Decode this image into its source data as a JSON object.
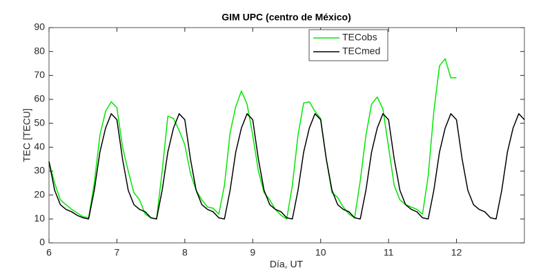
{
  "chart_data": {
    "type": "line",
    "title": "GIM UPC (centro de México)",
    "xlabel": "Día, UT",
    "ylabel": "TEC [TECU]",
    "xlim": [
      6,
      13
    ],
    "xticks": [
      6,
      7,
      8,
      9,
      10,
      11,
      12
    ],
    "ylim": [
      0,
      90
    ],
    "yticks": [
      0,
      10,
      20,
      30,
      40,
      50,
      60,
      70,
      80,
      90
    ],
    "series": [
      {
        "name": "TECobs",
        "color": "#00e600",
        "x_start": 6,
        "x_step_hours": 2,
        "values": [
          34,
          25,
          18,
          16,
          14,
          12.5,
          11,
          10.5,
          25,
          45,
          55,
          59,
          56.5,
          40,
          30,
          21,
          18,
          12,
          10.5,
          10,
          30,
          53,
          52,
          47,
          41,
          29,
          22,
          18,
          15,
          14.5,
          12,
          24,
          46,
          57,
          63.5,
          58,
          45,
          30,
          21,
          18,
          14,
          11.5,
          10,
          24,
          45,
          58.5,
          59,
          55,
          52,
          35,
          21,
          19,
          15,
          12,
          10.5,
          26,
          45,
          58,
          61,
          56,
          40,
          24,
          18,
          16,
          15,
          14,
          12,
          28,
          55,
          74,
          77,
          69,
          69
        ]
      },
      {
        "name": "TECmed",
        "color": "#000000",
        "x_start": 6,
        "x_step_hours": 2,
        "values": [
          34,
          22,
          16,
          14,
          13,
          11.5,
          10.5,
          10,
          22,
          38,
          48,
          54,
          51.5,
          35,
          22,
          16,
          14,
          13,
          10.5,
          10,
          22,
          38,
          48,
          54,
          51.5,
          35,
          22,
          16,
          14,
          13,
          10.5,
          10,
          22,
          38,
          48,
          54,
          51.5,
          35,
          22,
          16,
          14,
          13,
          10.5,
          10,
          22,
          38,
          48,
          54,
          51.5,
          35,
          22,
          16,
          14,
          13,
          10.5,
          10,
          22,
          38,
          48,
          54,
          51.5,
          35,
          22,
          16,
          14,
          13,
          10.5,
          10,
          22,
          38,
          48,
          54,
          51.5,
          35,
          22,
          16,
          14,
          13,
          10.5,
          10,
          22,
          38,
          48,
          54,
          51.5
        ]
      }
    ]
  }
}
